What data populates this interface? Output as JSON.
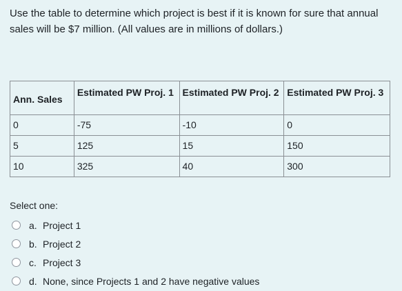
{
  "question": {
    "text": "Use the table to determine which project is best if it is known for sure that annual sales will be $7 million. (All values are in millions of dollars.)"
  },
  "table": {
    "headers": [
      "Ann. Sales",
      "Estimated PW Proj. 1",
      "Estimated PW Proj. 2",
      "Estimated PW Proj. 3"
    ],
    "rows": [
      [
        "0",
        "-75",
        "-10",
        "0"
      ],
      [
        "5",
        "125",
        "15",
        "150"
      ],
      [
        "10",
        "325",
        "40",
        "300"
      ]
    ]
  },
  "answer": {
    "select_label": "Select one:",
    "options": [
      {
        "letter": "a.",
        "text": "Project 1"
      },
      {
        "letter": "b.",
        "text": "Project 2"
      },
      {
        "letter": "c.",
        "text": "Project 3"
      },
      {
        "letter": "d.",
        "text": "None, since Projects 1 and 2 have negative values"
      }
    ]
  }
}
